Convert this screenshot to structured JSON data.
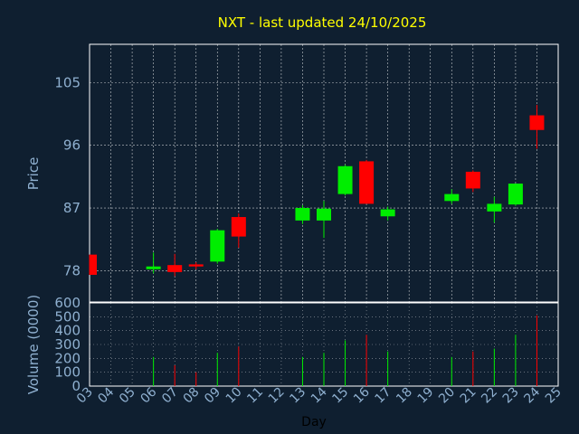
{
  "chart_data": {
    "type": "candlestick",
    "title": "NXT - last updated 24/10/2025",
    "xlabel": "Day",
    "price_ylabel": "Price",
    "volume_ylabel": "Volume (0000)",
    "x_ticks": [
      "03",
      "04",
      "05",
      "06",
      "07",
      "08",
      "09",
      "10",
      "11",
      "12",
      "13",
      "14",
      "15",
      "16",
      "17",
      "18",
      "19",
      "20",
      "21",
      "22",
      "23",
      "24",
      "25"
    ],
    "price_ticks": [
      "78",
      "87",
      "96",
      "105"
    ],
    "price_ylim": [
      73.5,
      110.5
    ],
    "volume_ticks": [
      "0",
      "100",
      "200",
      "300",
      "400",
      "500",
      "600"
    ],
    "volume_ylim": [
      0,
      600
    ],
    "grid": true,
    "colors": {
      "up": "#00ee00",
      "down": "#ff0000",
      "grid": "#ffffff",
      "background": "#0f1f30"
    },
    "candles": [
      {
        "day": "03",
        "open": 80.3,
        "high": 80.3,
        "low": 77.4,
        "close": 77.4,
        "volume": 0
      },
      {
        "day": "06",
        "open": 78.2,
        "high": 80.6,
        "low": 77.6,
        "close": 78.6,
        "volume": 210
      },
      {
        "day": "07",
        "open": 78.8,
        "high": 80.4,
        "low": 77.2,
        "close": 77.8,
        "volume": 150
      },
      {
        "day": "08",
        "open": 78.9,
        "high": 79.2,
        "low": 78.2,
        "close": 78.6,
        "volume": 100
      },
      {
        "day": "09",
        "open": 79.3,
        "high": 84.0,
        "low": 79.0,
        "close": 83.8,
        "volume": 240
      },
      {
        "day": "10",
        "open": 85.7,
        "high": 86.2,
        "low": 81.3,
        "close": 82.9,
        "volume": 285
      },
      {
        "day": "13",
        "open": 85.2,
        "high": 87.4,
        "low": 84.7,
        "close": 87.0,
        "volume": 210
      },
      {
        "day": "14",
        "open": 85.2,
        "high": 88.0,
        "low": 82.7,
        "close": 86.9,
        "volume": 240
      },
      {
        "day": "15",
        "open": 89.0,
        "high": 93.2,
        "low": 88.8,
        "close": 93.0,
        "volume": 330
      },
      {
        "day": "16",
        "open": 93.7,
        "high": 93.9,
        "low": 87.6,
        "close": 87.6,
        "volume": 370
      },
      {
        "day": "17",
        "open": 85.8,
        "high": 87.2,
        "low": 85.2,
        "close": 86.8,
        "volume": 250
      },
      {
        "day": "20",
        "open": 88.0,
        "high": 89.7,
        "low": 87.6,
        "close": 89.0,
        "volume": 210
      },
      {
        "day": "21",
        "open": 92.2,
        "high": 92.4,
        "low": 89.3,
        "close": 89.8,
        "volume": 250
      },
      {
        "day": "22",
        "open": 86.5,
        "high": 88.6,
        "low": 84.9,
        "close": 87.6,
        "volume": 270
      },
      {
        "day": "23",
        "open": 87.5,
        "high": 90.5,
        "low": 87.3,
        "close": 90.5,
        "volume": 370
      },
      {
        "day": "24",
        "open": 100.3,
        "high": 101.8,
        "low": 95.5,
        "close": 98.2,
        "volume": 510
      }
    ]
  }
}
